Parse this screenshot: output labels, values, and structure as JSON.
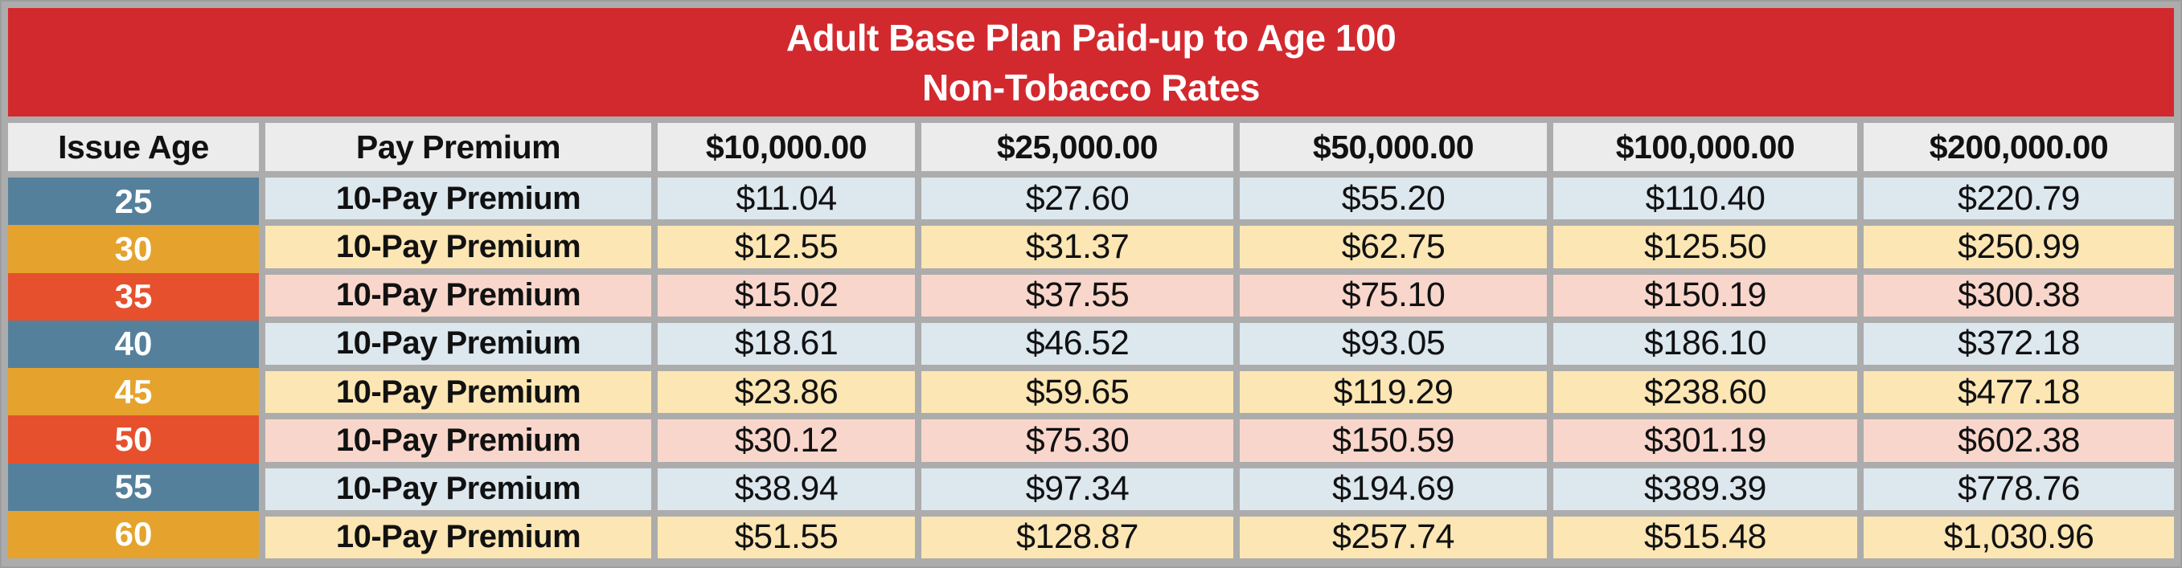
{
  "title": {
    "line1": "Adult Base Plan Paid-up to Age 100",
    "line2": "Non-Tobacco Rates"
  },
  "table": {
    "headers": [
      "Issue Age",
      "Pay Premium",
      "$10,000.00",
      "$25,000.00",
      "$50,000.00",
      "$100,000.00",
      "$200,000.00"
    ],
    "rows": [
      {
        "age": "25",
        "premium_type": "10-Pay Premium",
        "values": [
          "$11.04",
          "$27.60",
          "$55.20",
          "$110.40",
          "$220.79"
        ]
      },
      {
        "age": "30",
        "premium_type": "10-Pay Premium",
        "values": [
          "$12.55",
          "$31.37",
          "$62.75",
          "$125.50",
          "$250.99"
        ]
      },
      {
        "age": "35",
        "premium_type": "10-Pay Premium",
        "values": [
          "$15.02",
          "$37.55",
          "$75.10",
          "$150.19",
          "$300.38"
        ]
      },
      {
        "age": "40",
        "premium_type": "10-Pay Premium",
        "values": [
          "$18.61",
          "$46.52",
          "$93.05",
          "$186.10",
          "$372.18"
        ]
      },
      {
        "age": "45",
        "premium_type": "10-Pay Premium",
        "values": [
          "$23.86",
          "$59.65",
          "$119.29",
          "$238.60",
          "$477.18"
        ]
      },
      {
        "age": "50",
        "premium_type": "10-Pay Premium",
        "values": [
          "$30.12",
          "$75.30",
          "$150.59",
          "$301.19",
          "$602.38"
        ]
      },
      {
        "age": "55",
        "premium_type": "10-Pay Premium",
        "values": [
          "$38.94",
          "$97.34",
          "$194.69",
          "$389.39",
          "$778.76"
        ]
      },
      {
        "age": "60",
        "premium_type": "10-Pay Premium",
        "values": [
          "$51.55",
          "$128.87",
          "$257.74",
          "$515.48",
          "$1,030.96"
        ]
      }
    ]
  },
  "colors": {
    "header-red": "#D2292F",
    "frame-gray": "#ACACAC",
    "column-header-bg": "#ECECEC",
    "age-blue": "#54809B",
    "age-gold": "#E5A32D",
    "age-orange": "#E7502D",
    "row-blue": "#DCE7EE",
    "row-yellow": "#FBE6B4",
    "row-pink": "#F9D6CB",
    "text-dark": "#111111",
    "text-white": "#FFFFFF"
  }
}
